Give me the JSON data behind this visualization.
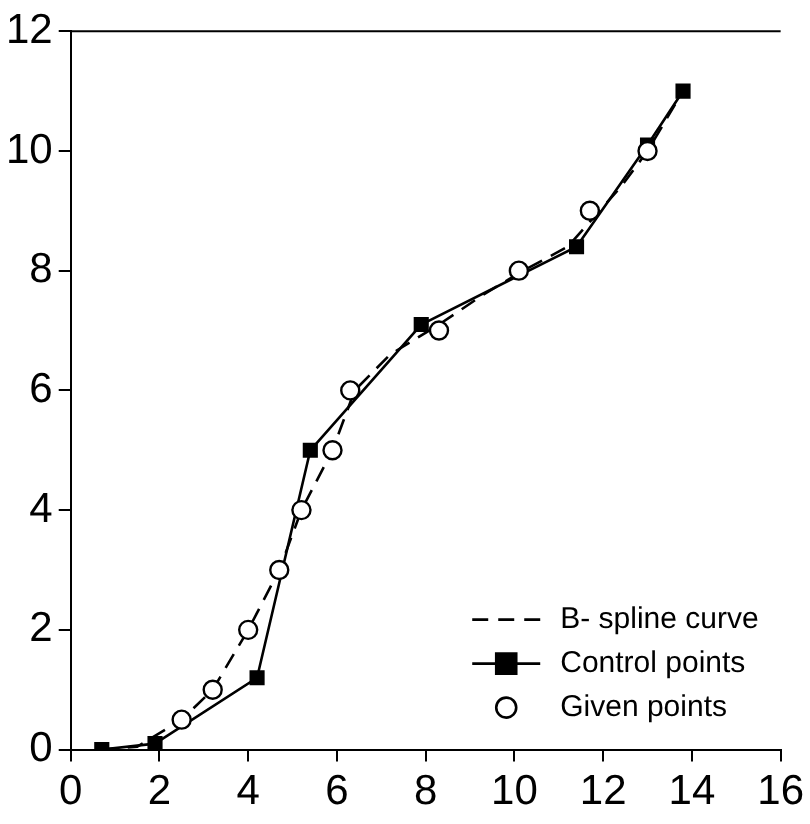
{
  "chart_data": {
    "type": "line",
    "series": [
      {
        "name": "B- spline curve",
        "color": "#000000",
        "line_style": "dashed",
        "marker": "none",
        "x": [
          0.7,
          1.5,
          2.5,
          3.2,
          4.0,
          4.7,
          5.2,
          5.9,
          6.4,
          7.2,
          8.3,
          9.3,
          10.2,
          11.2,
          11.8,
          12.4,
          13.0,
          13.8
        ],
        "values": [
          0,
          0.05,
          0.5,
          1.0,
          2.0,
          3.0,
          4.0,
          5.0,
          6.0,
          6.6,
          7.1,
          7.6,
          8.0,
          8.4,
          8.9,
          9.4,
          10.0,
          11.0
        ]
      },
      {
        "name": "Control points",
        "color": "#000000",
        "line_style": "solid",
        "marker": "square",
        "x": [
          0.7,
          1.9,
          4.2,
          5.4,
          7.9,
          11.4,
          13.0,
          13.8
        ],
        "values": [
          0,
          0.1,
          1.2,
          5.0,
          7.1,
          8.4,
          10.1,
          11.0
        ]
      },
      {
        "name": "Given points",
        "type": "scatter",
        "color": "#000000",
        "marker": "circle",
        "x": [
          2.5,
          3.2,
          4.0,
          4.7,
          5.2,
          5.9,
          6.3,
          8.3,
          10.1,
          11.7,
          13.0
        ],
        "values": [
          0.5,
          1.0,
          2.0,
          3.0,
          4.0,
          5.0,
          6.0,
          7.0,
          8.0,
          9.0,
          10.0
        ]
      }
    ],
    "xlim": [
      0,
      16
    ],
    "xticks": [
      0,
      2,
      4,
      6,
      8,
      10,
      12,
      14,
      16
    ],
    "ylim": [
      0,
      12
    ],
    "yticks": [
      0,
      2,
      4,
      6,
      8,
      10,
      12
    ],
    "grid": false,
    "legend": "bottom right"
  }
}
